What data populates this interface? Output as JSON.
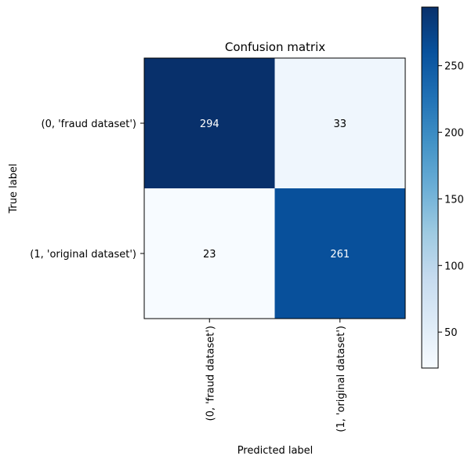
{
  "chart_data": {
    "type": "heatmap",
    "title": "Confusion matrix",
    "xlabel": "Predicted label",
    "ylabel": "True label",
    "x_categories": [
      "(0, 'fraud dataset')",
      "(1, 'original dataset')"
    ],
    "y_categories": [
      "(0, 'fraud dataset')",
      "(1, 'original dataset')"
    ],
    "values": [
      [
        294,
        33
      ],
      [
        23,
        261
      ]
    ],
    "colormap": "Blues",
    "colorbar": {
      "range": [
        23,
        294
      ],
      "ticks": [
        50,
        100,
        150,
        200,
        250
      ],
      "tick_labels": [
        "50",
        "100",
        "150",
        "200",
        "250"
      ]
    },
    "colors": {
      "cell_294": "#08306b",
      "cell_33": "#eff6fd",
      "cell_23": "#f7fbff",
      "cell_261": "#08509b",
      "dark_text": "#000000",
      "light_text": "#ffffff"
    }
  }
}
